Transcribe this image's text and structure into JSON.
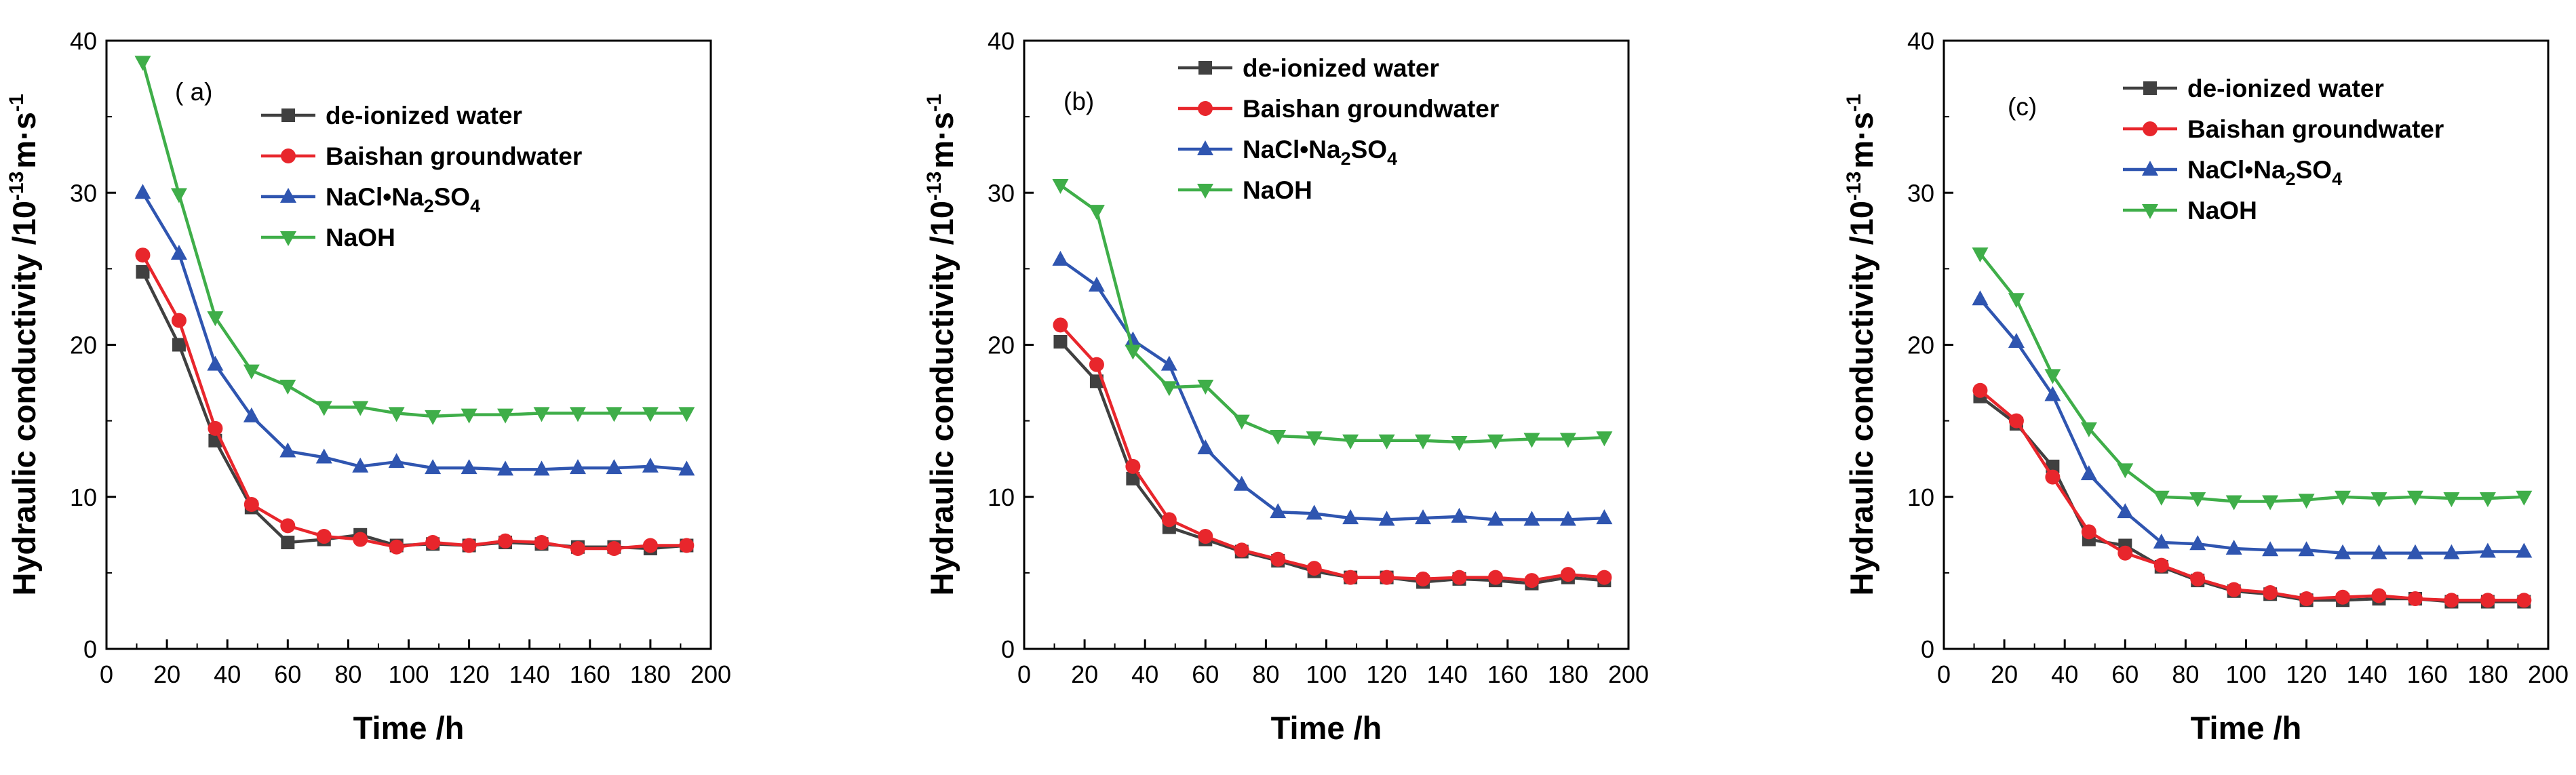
{
  "colors": {
    "de-ionized water": "#404040",
    "Baishan groundwater": "#e8262c",
    "NaCl-Na2SO4": "#2f55b0",
    "NaOH": "#3fae49"
  },
  "chart_data": [
    {
      "type": "line",
      "panel_label": "( a)",
      "xlabel": "Time /h",
      "ylabel_main": "Hydraulic conductivity /10",
      "ylabel_exp": "-13",
      "ylabel_unit1": "m·s",
      "ylabel_unit_exp": "-1",
      "xlim": [
        0,
        200
      ],
      "ylim": [
        0,
        40
      ],
      "xticks": [
        "0",
        "20",
        "40",
        "60",
        "80",
        "100",
        "120",
        "140",
        "160",
        "180",
        "200"
      ],
      "yticks": [
        "0",
        "10",
        "20",
        "30",
        "40"
      ],
      "legend_position": "upper-middle",
      "x": [
        12,
        24,
        36,
        48,
        60,
        72,
        84,
        96,
        108,
        120,
        132,
        144,
        156,
        168,
        180,
        192
      ],
      "series": [
        {
          "name": "de-ionized water",
          "marker": "square",
          "values": [
            24.8,
            20.0,
            13.7,
            9.3,
            7.0,
            7.2,
            7.5,
            6.8,
            6.9,
            6.8,
            7.0,
            6.9,
            6.7,
            6.7,
            6.6,
            6.8
          ]
        },
        {
          "name": "Baishan groundwater",
          "marker": "circle",
          "values": [
            25.9,
            21.6,
            14.5,
            9.5,
            8.1,
            7.4,
            7.2,
            6.7,
            7.0,
            6.8,
            7.1,
            7.0,
            6.6,
            6.6,
            6.8,
            6.8
          ]
        },
        {
          "name": "NaCl•Na2SO4",
          "label_main": "NaCl•Na",
          "label_sub1": "2",
          "label_mid": "SO",
          "label_sub2": "4",
          "marker": "triangle-up",
          "values": [
            30.0,
            26.0,
            18.7,
            15.3,
            13.0,
            12.6,
            12.0,
            12.3,
            11.9,
            11.9,
            11.8,
            11.8,
            11.9,
            11.9,
            12.0,
            11.8
          ]
        },
        {
          "name": "NaOH",
          "marker": "triangle-down",
          "values": [
            38.6,
            29.9,
            21.8,
            18.3,
            17.3,
            15.9,
            15.9,
            15.5,
            15.3,
            15.4,
            15.4,
            15.5,
            15.5,
            15.5,
            15.5,
            15.5
          ]
        }
      ]
    },
    {
      "type": "line",
      "panel_label": "(b)",
      "xlabel": "Time /h",
      "ylabel_main": "Hydraulic conductivity /10",
      "ylabel_exp": "-13",
      "ylabel_unit1": "m·s",
      "ylabel_unit_exp": "-1",
      "xlim": [
        0,
        200
      ],
      "ylim": [
        0,
        40
      ],
      "xticks": [
        "0",
        "20",
        "40",
        "60",
        "80",
        "100",
        "120",
        "140",
        "160",
        "180",
        "200"
      ],
      "yticks": [
        "0",
        "10",
        "20",
        "30",
        "40"
      ],
      "legend_position": "top-middle",
      "x": [
        12,
        24,
        36,
        48,
        60,
        72,
        84,
        96,
        108,
        120,
        132,
        144,
        156,
        168,
        180,
        192
      ],
      "series": [
        {
          "name": "de-ionized water",
          "marker": "square",
          "values": [
            20.2,
            17.6,
            11.2,
            8.0,
            7.2,
            6.4,
            5.8,
            5.1,
            4.7,
            4.7,
            4.4,
            4.6,
            4.5,
            4.3,
            4.7,
            4.5
          ]
        },
        {
          "name": "Baishan groundwater",
          "marker": "circle",
          "values": [
            21.3,
            18.7,
            12.0,
            8.5,
            7.4,
            6.5,
            5.9,
            5.3,
            4.7,
            4.7,
            4.6,
            4.7,
            4.7,
            4.5,
            4.9,
            4.7
          ]
        },
        {
          "name": "NaCl•Na2SO4",
          "label_main": "NaCl•Na",
          "label_sub1": "2",
          "label_mid": "SO",
          "label_sub2": "4",
          "marker": "triangle-up",
          "values": [
            25.6,
            23.9,
            20.3,
            18.7,
            13.2,
            10.8,
            9.0,
            8.9,
            8.6,
            8.5,
            8.6,
            8.7,
            8.5,
            8.5,
            8.5,
            8.6
          ]
        },
        {
          "name": "NaOH",
          "marker": "triangle-down",
          "values": [
            30.5,
            28.8,
            19.6,
            17.2,
            17.3,
            15.0,
            14.0,
            13.9,
            13.7,
            13.7,
            13.7,
            13.6,
            13.7,
            13.8,
            13.8,
            13.9
          ]
        }
      ]
    },
    {
      "type": "line",
      "panel_label": "(c)",
      "xlabel": "Time /h",
      "ylabel_main": "Hydraulic conductivity /10",
      "ylabel_exp": "-13",
      "ylabel_unit1": "m·s",
      "ylabel_unit_exp": "-1",
      "xlim": [
        0,
        200
      ],
      "ylim": [
        0,
        40
      ],
      "xticks": [
        "0",
        "20",
        "40",
        "60",
        "80",
        "100",
        "120",
        "140",
        "160",
        "180",
        "200"
      ],
      "yticks": [
        "0",
        "10",
        "20",
        "30",
        "40"
      ],
      "legend_position": "upper-middle",
      "x": [
        12,
        24,
        36,
        48,
        60,
        72,
        84,
        96,
        108,
        120,
        132,
        144,
        156,
        168,
        180,
        192
      ],
      "series": [
        {
          "name": "de-ionized water",
          "marker": "square",
          "values": [
            16.6,
            14.8,
            12.0,
            7.2,
            6.8,
            5.4,
            4.5,
            3.8,
            3.6,
            3.2,
            3.2,
            3.3,
            3.3,
            3.1,
            3.1,
            3.1
          ]
        },
        {
          "name": "Baishan groundwater",
          "marker": "circle",
          "values": [
            17.0,
            15.0,
            11.3,
            7.7,
            6.3,
            5.5,
            4.6,
            3.9,
            3.7,
            3.3,
            3.4,
            3.5,
            3.3,
            3.2,
            3.2,
            3.2
          ]
        },
        {
          "name": "NaCl•Na2SO4",
          "label_main": "NaCl•Na",
          "label_sub1": "2",
          "label_mid": "SO",
          "label_sub2": "4",
          "marker": "triangle-up",
          "values": [
            23.0,
            20.2,
            16.7,
            11.5,
            9.0,
            7.0,
            6.9,
            6.6,
            6.5,
            6.5,
            6.3,
            6.3,
            6.3,
            6.3,
            6.4,
            6.4
          ]
        },
        {
          "name": "NaOH",
          "marker": "triangle-down",
          "values": [
            26.0,
            23.0,
            18.0,
            14.5,
            11.8,
            10.0,
            9.9,
            9.7,
            9.7,
            9.8,
            10.0,
            9.9,
            10.0,
            9.9,
            9.9,
            10.0
          ]
        }
      ]
    }
  ]
}
